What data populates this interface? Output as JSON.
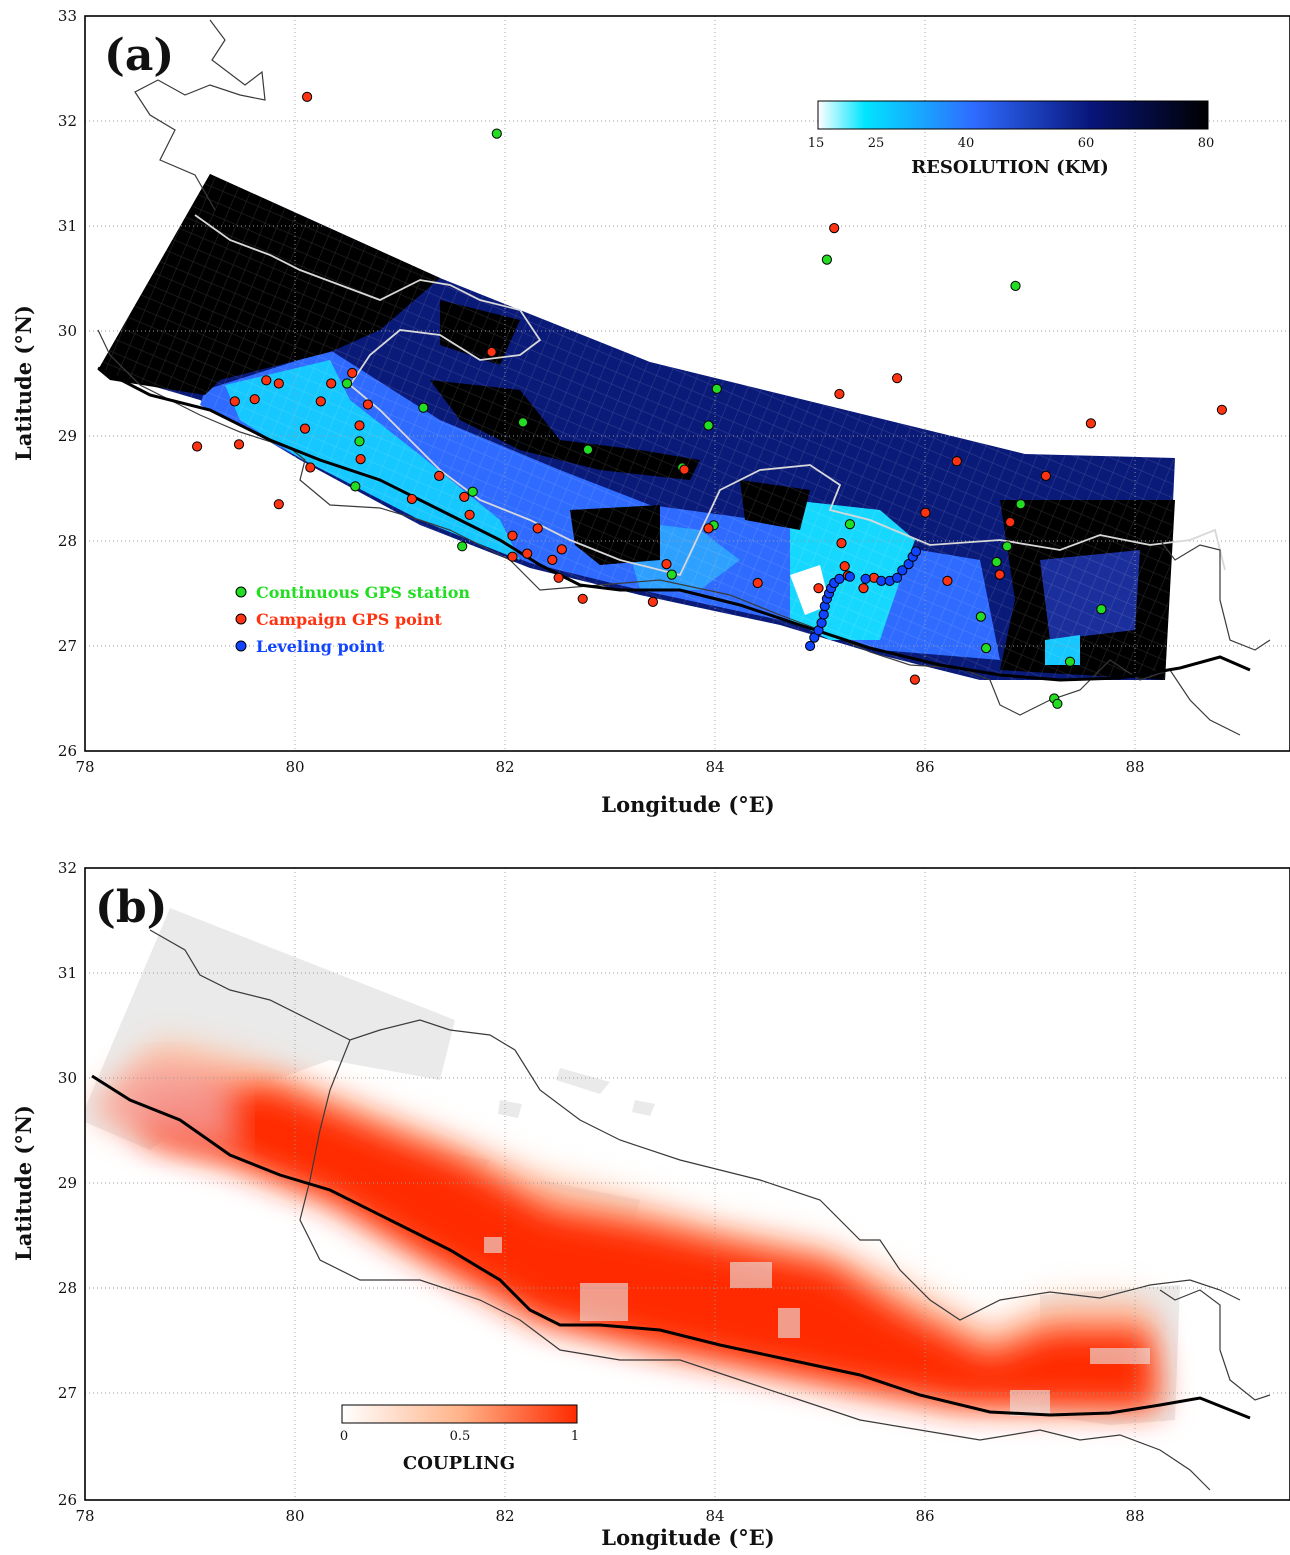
{
  "panel_a": {
    "label": "(a)",
    "xlabel": "Longitude (°E)",
    "ylabel": "Latitude (°N)",
    "xlim": [
      78,
      89.5
    ],
    "ylim": [
      26,
      33
    ],
    "xticks": [
      "78",
      "80",
      "82",
      "84",
      "86",
      "88"
    ],
    "yticks": [
      "26",
      "27",
      "28",
      "29",
      "30",
      "31",
      "32",
      "33"
    ],
    "colorbar": {
      "title": "RESOLUTION (KM)",
      "ticks": [
        "15",
        "25",
        "40",
        "60",
        "80"
      ],
      "tick_values": [
        15,
        25,
        40,
        60,
        80
      ],
      "colors": [
        "#ffffff",
        "#00e5ff",
        "#2f6bff",
        "#08157a",
        "#000000"
      ]
    },
    "legend": {
      "items": [
        {
          "label": "Continuous GPS station",
          "color": "#22dd22"
        },
        {
          "label": "Campaign GPS point",
          "color": "#ff3311"
        },
        {
          "label": "Leveling point",
          "color": "#1144ff"
        }
      ]
    }
  },
  "panel_b": {
    "label": "(b)",
    "xlabel": "Longitude (°E)",
    "ylabel": "Latitude (°N)",
    "xlim": [
      78,
      89.5
    ],
    "ylim": [
      26,
      32
    ],
    "xticks": [
      "78",
      "80",
      "82",
      "84",
      "86",
      "88"
    ],
    "yticks": [
      "26",
      "27",
      "28",
      "29",
      "30",
      "31",
      "32"
    ],
    "colorbar": {
      "title": "COUPLING",
      "ticks": [
        "0",
        "0.5",
        "1"
      ],
      "tick_values": [
        0,
        0.5,
        1
      ],
      "colors": [
        "#ffffff",
        "#ffb48a",
        "#ff2a00"
      ]
    }
  },
  "chart_data": [
    {
      "type": "scatter",
      "panel": "a",
      "series": [
        {
          "name": "Continuous GPS station",
          "points": [
            [
              81.93,
              31.88
            ],
            [
              85.08,
              30.68
            ],
            [
              86.88,
              30.43
            ],
            [
              80.5,
              29.5
            ],
            [
              81.23,
              29.27
            ],
            [
              82.18,
              29.13
            ],
            [
              82.8,
              28.87
            ],
            [
              84.03,
              29.45
            ],
            [
              83.95,
              29.1
            ],
            [
              80.62,
              28.95
            ],
            [
              80.58,
              28.52
            ],
            [
              81.7,
              28.47
            ],
            [
              81.6,
              27.95
            ],
            [
              83.7,
              28.7
            ],
            [
              85.3,
              28.16
            ],
            [
              86.93,
              28.35
            ],
            [
              86.8,
              27.95
            ],
            [
              86.7,
              27.8
            ],
            [
              86.55,
              27.28
            ],
            [
              86.6,
              26.98
            ],
            [
              87.4,
              26.85
            ],
            [
              87.25,
              26.5
            ],
            [
              87.28,
              26.45
            ],
            [
              87.7,
              27.35
            ],
            [
              83.6,
              27.68
            ],
            [
              84.0,
              28.15
            ],
            [
              85.9,
              27.85
            ]
          ]
        },
        {
          "name": "Campaign GPS point",
          "points": [
            [
              80.12,
              32.23
            ],
            [
              85.15,
              30.98
            ],
            [
              85.75,
              29.55
            ],
            [
              85.2,
              29.4
            ],
            [
              87.6,
              29.12
            ],
            [
              88.85,
              29.25
            ],
            [
              79.07,
              28.9
            ],
            [
              79.47,
              28.92
            ],
            [
              79.43,
              29.33
            ],
            [
              79.62,
              29.35
            ],
            [
              79.73,
              29.53
            ],
            [
              79.85,
              29.5
            ],
            [
              80.1,
              29.07
            ],
            [
              80.15,
              28.7
            ],
            [
              80.25,
              29.33
            ],
            [
              80.35,
              29.5
            ],
            [
              80.55,
              29.6
            ],
            [
              80.7,
              29.3
            ],
            [
              80.62,
              29.1
            ],
            [
              80.63,
              28.78
            ],
            [
              79.85,
              28.35
            ],
            [
              81.12,
              28.4
            ],
            [
              81.38,
              28.62
            ],
            [
              81.62,
              28.42
            ],
            [
              81.67,
              28.25
            ],
            [
              82.08,
              28.05
            ],
            [
              82.08,
              27.85
            ],
            [
              82.22,
              27.88
            ],
            [
              82.32,
              28.12
            ],
            [
              82.46,
              27.82
            ],
            [
              82.52,
              27.65
            ],
            [
              82.55,
              27.92
            ],
            [
              82.75,
              27.45
            ],
            [
              83.42,
              27.42
            ],
            [
              83.55,
              27.78
            ],
            [
              83.72,
              28.68
            ],
            [
              83.95,
              28.12
            ],
            [
              84.42,
              27.6
            ],
            [
              85.0,
              27.55
            ],
            [
              85.25,
              27.76
            ],
            [
              85.28,
              27.67
            ],
            [
              85.43,
              27.55
            ],
            [
              85.53,
              27.65
            ],
            [
              85.22,
              27.98
            ],
            [
              86.02,
              28.27
            ],
            [
              86.23,
              27.62
            ],
            [
              86.32,
              28.76
            ],
            [
              86.73,
              27.68
            ],
            [
              86.83,
              28.18
            ],
            [
              87.17,
              28.62
            ],
            [
              85.92,
              26.68
            ],
            [
              81.88,
              29.8
            ]
          ]
        },
        {
          "name": "Leveling point",
          "points": [
            [
              84.92,
              27.0
            ],
            [
              84.96,
              27.08
            ],
            [
              85.0,
              27.15
            ],
            [
              85.03,
              27.22
            ],
            [
              85.05,
              27.3
            ],
            [
              85.06,
              27.38
            ],
            [
              85.08,
              27.45
            ],
            [
              85.1,
              27.5
            ],
            [
              85.12,
              27.55
            ],
            [
              85.15,
              27.6
            ],
            [
              85.2,
              27.64
            ],
            [
              85.3,
              27.66
            ],
            [
              85.45,
              27.64
            ],
            [
              85.6,
              27.62
            ],
            [
              85.68,
              27.62
            ],
            [
              85.75,
              27.65
            ],
            [
              85.8,
              27.72
            ],
            [
              85.86,
              27.78
            ],
            [
              85.9,
              27.85
            ],
            [
              85.93,
              27.9
            ]
          ]
        }
      ]
    }
  ]
}
